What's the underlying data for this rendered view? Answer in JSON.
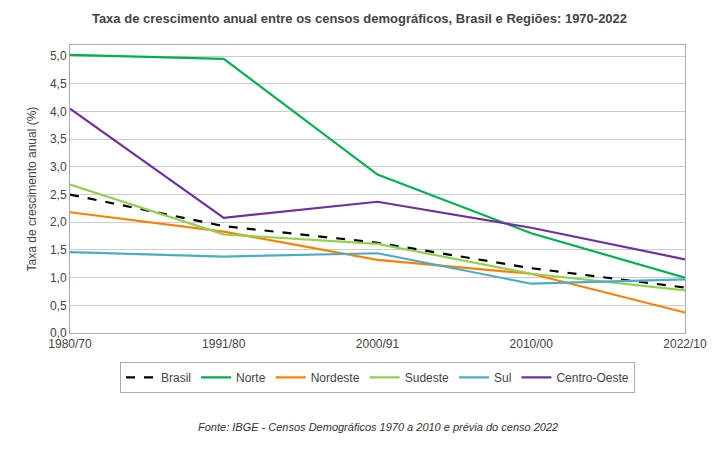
{
  "chart_data": {
    "type": "line",
    "title": "Taxa de crescimento anual entre os censos demográficos, Brasil e Regiões: 1970-2022",
    "ylabel": "Taxa de crescimento anual (%)",
    "annotations": [
      "Fonte: IBGE - Censos Demográficos 1970 a 2010 e prévia do censo 2022"
    ],
    "categories": [
      "1980/70",
      "1991/80",
      "2000/91",
      "2010/00",
      "2022/10"
    ],
    "series": [
      {
        "name": "Brasil",
        "color": "#000000",
        "line_style": "dashed",
        "values": [
          2.5,
          1.93,
          1.63,
          1.17,
          0.82
        ]
      },
      {
        "name": "Norte",
        "color": "#00B050",
        "line_style": "solid",
        "values": [
          5.02,
          4.95,
          2.86,
          1.8,
          1.0
        ]
      },
      {
        "name": "Nordeste",
        "color": "#FF8000",
        "line_style": "solid",
        "values": [
          2.18,
          1.83,
          1.32,
          1.07,
          0.37
        ]
      },
      {
        "name": "Sudeste",
        "color": "#92D050",
        "line_style": "solid",
        "values": [
          2.68,
          1.78,
          1.61,
          1.07,
          0.77
        ]
      },
      {
        "name": "Sul",
        "color": "#4BACC6",
        "line_style": "solid",
        "values": [
          1.46,
          1.38,
          1.44,
          0.89,
          0.97
        ]
      },
      {
        "name": "Centro-Oeste",
        "color": "#7030A0",
        "line_style": "solid",
        "values": [
          4.05,
          2.08,
          2.37,
          1.9,
          1.33
        ]
      }
    ],
    "ylim": [
      0.0,
      5.2
    ],
    "yticks": [
      {
        "value": 0.0,
        "label": "0,0"
      },
      {
        "value": 0.5,
        "label": "0,5"
      },
      {
        "value": 1.0,
        "label": "1,0"
      },
      {
        "value": 1.5,
        "label": "1,5"
      },
      {
        "value": 2.0,
        "label": "2,0"
      },
      {
        "value": 2.5,
        "label": "2,5"
      },
      {
        "value": 3.0,
        "label": "3,0"
      },
      {
        "value": 3.5,
        "label": "3,5"
      },
      {
        "value": 4.0,
        "label": "4,0"
      },
      {
        "value": 4.5,
        "label": "4,5"
      },
      {
        "value": 5.0,
        "label": "5,0"
      }
    ],
    "grid": true,
    "legend": "bottom"
  }
}
